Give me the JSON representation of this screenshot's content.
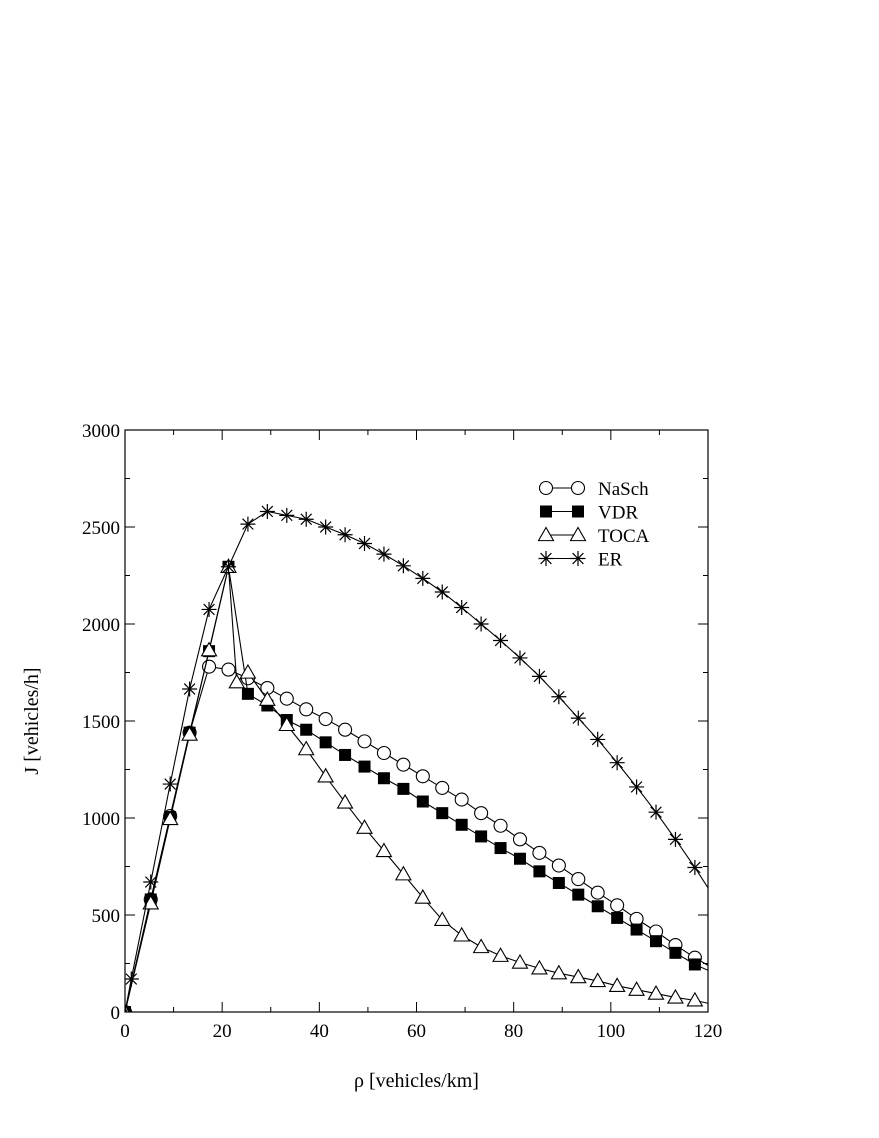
{
  "chart_data": {
    "type": "line",
    "xlabel": "ρ [vehicles/km]",
    "ylabel": "J [vehicles/h]",
    "xlim": [
      0,
      120
    ],
    "ylim": [
      0,
      3000
    ],
    "xticks": [
      0,
      20,
      40,
      60,
      80,
      100,
      120
    ],
    "yticks": [
      0,
      500,
      1000,
      1500,
      2000,
      2500,
      3000
    ],
    "grid": false,
    "legend_position": "top-right",
    "series": [
      {
        "name": "NaSch",
        "marker": "open-circle",
        "x": [
          0,
          5.3,
          9.3,
          13.3,
          17.3,
          21.3,
          25.3,
          29.3,
          33.3,
          37.3,
          41.3,
          45.3,
          49.3,
          53.3,
          57.3,
          61.3,
          65.3,
          69.3,
          73.3,
          77.3,
          81.3,
          85.3,
          89.3,
          93.3,
          97.3,
          101.3,
          105.3,
          109.3,
          113.3,
          117.3,
          120
        ],
        "y": [
          0,
          580,
          1010,
          1440,
          1780,
          1765,
          1720,
          1670,
          1615,
          1560,
          1510,
          1455,
          1395,
          1335,
          1275,
          1215,
          1155,
          1095,
          1025,
          960,
          890,
          820,
          755,
          685,
          615,
          550,
          480,
          415,
          345,
          280,
          240
        ]
      },
      {
        "name": "VDR",
        "marker": "filled-square",
        "x": [
          0,
          5.3,
          9.3,
          13.3,
          17.3,
          21.3,
          25.3,
          29.3,
          33.3,
          37.3,
          41.3,
          45.3,
          49.3,
          53.3,
          57.3,
          61.3,
          65.3,
          69.3,
          73.3,
          77.3,
          81.3,
          85.3,
          89.3,
          93.3,
          97.3,
          101.3,
          105.3,
          109.3,
          113.3,
          117.3,
          120
        ],
        "y": [
          0,
          580,
          1005,
          1440,
          1860,
          2295,
          1640,
          1580,
          1505,
          1455,
          1390,
          1325,
          1265,
          1205,
          1150,
          1085,
          1025,
          965,
          905,
          845,
          790,
          725,
          665,
          605,
          545,
          485,
          425,
          365,
          305,
          245,
          215
        ]
      },
      {
        "name": "TOCA",
        "marker": "open-triangle",
        "x": [
          0,
          5.3,
          9.3,
          13.3,
          17.3,
          21.3,
          23.0,
          25.3,
          29.3,
          33.3,
          37.3,
          41.3,
          45.3,
          49.3,
          53.3,
          57.3,
          61.3,
          65.3,
          69.3,
          73.3,
          77.3,
          81.3,
          85.3,
          89.3,
          93.3,
          97.3,
          101.3,
          105.3,
          109.3,
          113.3,
          117.3,
          120
        ],
        "y": [
          0,
          560,
          995,
          1430,
          1865,
          2295,
          1700,
          1750,
          1610,
          1480,
          1355,
          1215,
          1080,
          950,
          830,
          710,
          590,
          475,
          395,
          335,
          290,
          255,
          225,
          200,
          180,
          160,
          135,
          115,
          95,
          75,
          60,
          45
        ]
      },
      {
        "name": "ER",
        "marker": "star",
        "x": [
          0,
          1.3,
          5.3,
          9.3,
          13.3,
          17.3,
          21.3,
          25.3,
          29.3,
          33.3,
          37.3,
          41.3,
          45.3,
          49.3,
          53.3,
          57.3,
          61.3,
          65.3,
          69.3,
          73.3,
          77.3,
          81.3,
          85.3,
          89.3,
          93.3,
          97.3,
          101.3,
          105.3,
          109.3,
          113.3,
          117.3,
          120
        ],
        "y": [
          0,
          170,
          670,
          1175,
          1665,
          2075,
          2295,
          2515,
          2580,
          2560,
          2540,
          2500,
          2460,
          2415,
          2360,
          2300,
          2235,
          2165,
          2085,
          2000,
          1915,
          1825,
          1730,
          1625,
          1515,
          1405,
          1285,
          1160,
          1030,
          890,
          745,
          640
        ]
      }
    ]
  }
}
